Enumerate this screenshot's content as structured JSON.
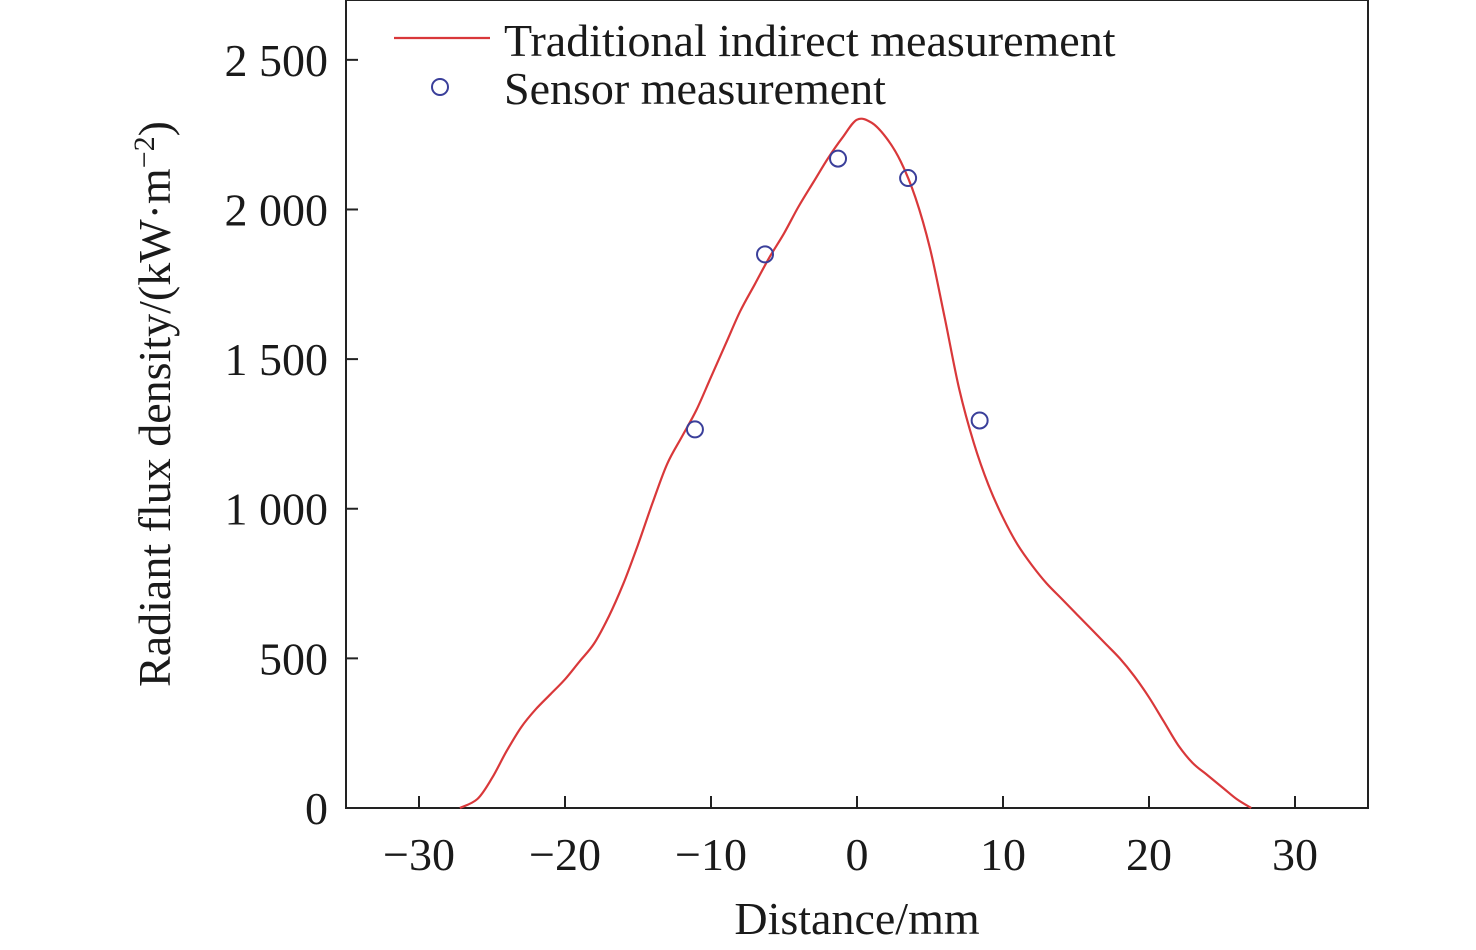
{
  "chart_data": {
    "type": "line",
    "title": "",
    "xlabel": "Distance/mm",
    "ylabel": "Radiant flux density/(kW·m",
    "ylabel_sup": "−2",
    "ylabel_close": ")",
    "xlim": [
      -35,
      35
    ],
    "ylim": [
      0,
      2700
    ],
    "xticks": [
      -30,
      -20,
      -10,
      0,
      10,
      20,
      30
    ],
    "xtick_labels": [
      "−30",
      "−20",
      "−10",
      "0",
      "10",
      "20",
      "30"
    ],
    "yticks": [
      0,
      500,
      1000,
      1500,
      2000,
      2500
    ],
    "ytick_labels": [
      "0",
      "500",
      "1 000",
      "1 500",
      "2 000",
      "2 500"
    ],
    "grid": false,
    "legend_position": "top-left",
    "series": [
      {
        "name": "Traditional indirect measurement",
        "style": "line",
        "color": "#d9383a",
        "x": [
          -27.2,
          -26,
          -25,
          -24,
          -23,
          -22,
          -21,
          -20,
          -19,
          -18,
          -17,
          -16,
          -15,
          -14,
          -13,
          -12,
          -11,
          -10,
          -9,
          -8,
          -7,
          -6,
          -5,
          -4,
          -3,
          -2,
          -1,
          0,
          1,
          2,
          3,
          4,
          5,
          6,
          7,
          8,
          9,
          10,
          11,
          12,
          13,
          14,
          15,
          16,
          17,
          18,
          19,
          20,
          21,
          22,
          23,
          24,
          25,
          26,
          27
        ],
        "y": [
          0,
          30,
          100,
          190,
          270,
          330,
          380,
          430,
          490,
          550,
          640,
          750,
          880,
          1020,
          1150,
          1240,
          1330,
          1440,
          1550,
          1660,
          1750,
          1840,
          1920,
          2010,
          2090,
          2170,
          2240,
          2300,
          2290,
          2240,
          2160,
          2040,
          1870,
          1640,
          1400,
          1220,
          1080,
          970,
          880,
          810,
          750,
          700,
          650,
          600,
          550,
          500,
          440,
          370,
          290,
          210,
          150,
          110,
          70,
          30,
          0
        ]
      },
      {
        "name": "Sensor measurement",
        "style": "scatter",
        "marker": "circle-open",
        "color": "#3a3f9a",
        "x": [
          -11.1,
          -6.3,
          -1.3,
          3.5,
          8.4
        ],
        "y": [
          1265,
          1850,
          2170,
          2105,
          1295
        ]
      }
    ]
  }
}
